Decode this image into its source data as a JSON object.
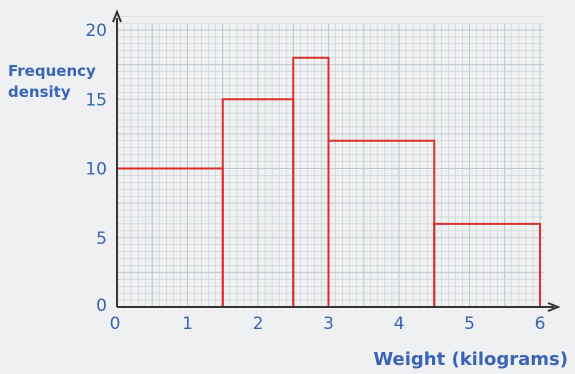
{
  "chart_data": {
    "type": "bar",
    "subtype": "histogram",
    "ylabel_lines": [
      "Frequency",
      "density"
    ],
    "xlabel": "Weight (kilograms)",
    "xlim": [
      0,
      6
    ],
    "ylim": [
      0,
      20
    ],
    "x_ticks": [
      "0",
      "1",
      "2",
      "3",
      "4",
      "5",
      "6"
    ],
    "y_ticks": [
      "0",
      "5",
      "10",
      "15",
      "20"
    ],
    "grid": true,
    "bars": [
      {
        "x_start": 0,
        "x_end": 1.5,
        "value": 10
      },
      {
        "x_start": 1.5,
        "x_end": 2.5,
        "value": 15
      },
      {
        "x_start": 2.5,
        "x_end": 3,
        "value": 18
      },
      {
        "x_start": 3,
        "x_end": 4.5,
        "value": 12
      },
      {
        "x_start": 4.5,
        "x_end": 6,
        "value": 6
      }
    ],
    "colors": {
      "bar_outline": "#d9302c",
      "text": "#3a64b4",
      "grid": "#c3c7cb",
      "axis": "#333333"
    }
  }
}
